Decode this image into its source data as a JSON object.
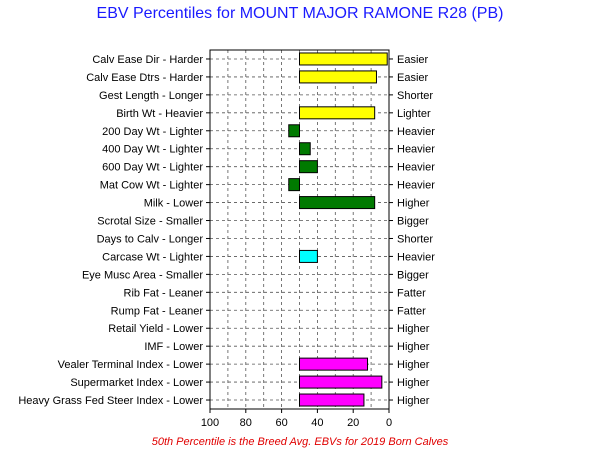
{
  "title": "EBV Percentiles for MOUNT MAJOR RAMONE R28 (PB)",
  "footnote": "50th Percentile is the Breed Avg. EBVs for 2019 Born Calves",
  "colors": {
    "yellow": "#ffff00",
    "green": "#007a00",
    "cyan": "#00ffff",
    "magenta": "#ff00ff",
    "title": "#1a1aff",
    "footnote": "#e00000"
  },
  "chart_data": {
    "type": "bar",
    "orientation": "horizontal",
    "baseline": 50,
    "xlim": [
      100,
      0
    ],
    "xticks": [
      "100",
      "80",
      "60",
      "40",
      "20",
      "0"
    ],
    "xtick_values": [
      100,
      80,
      60,
      40,
      20,
      0
    ],
    "grid": true,
    "rows": [
      {
        "left": "Calv Ease Dir - Harder",
        "right": "Easier",
        "value": 1,
        "color": "yellow"
      },
      {
        "left": "Calv Ease Dtrs - Harder",
        "right": "Easier",
        "value": 7,
        "color": "yellow"
      },
      {
        "left": "Gest Length - Longer",
        "right": "Shorter",
        "value": null,
        "color": null
      },
      {
        "left": "Birth Wt - Heavier",
        "right": "Lighter",
        "value": 8,
        "color": "yellow"
      },
      {
        "left": "200 Day Wt - Lighter",
        "right": "Heavier",
        "value": 56,
        "color": "green"
      },
      {
        "left": "400 Day Wt - Lighter",
        "right": "Heavier",
        "value": 44,
        "color": "green"
      },
      {
        "left": "600 Day Wt - Lighter",
        "right": "Heavier",
        "value": 40,
        "color": "green"
      },
      {
        "left": "Mat Cow Wt - Lighter",
        "right": "Heavier",
        "value": 56,
        "color": "green"
      },
      {
        "left": "Milk - Lower",
        "right": "Higher",
        "value": 8,
        "color": "green"
      },
      {
        "left": "Scrotal Size - Smaller",
        "right": "Bigger",
        "value": null,
        "color": null
      },
      {
        "left": "Days to Calv - Longer",
        "right": "Shorter",
        "value": null,
        "color": null
      },
      {
        "left": "Carcase Wt - Lighter",
        "right": "Heavier",
        "value": 40,
        "color": "cyan"
      },
      {
        "left": "Eye Musc Area - Smaller",
        "right": "Bigger",
        "value": null,
        "color": null
      },
      {
        "left": "Rib Fat - Leaner",
        "right": "Fatter",
        "value": null,
        "color": null
      },
      {
        "left": "Rump Fat - Leaner",
        "right": "Fatter",
        "value": null,
        "color": null
      },
      {
        "left": "Retail Yield - Lower",
        "right": "Higher",
        "value": null,
        "color": null
      },
      {
        "left": "IMF - Lower",
        "right": "Higher",
        "value": null,
        "color": null
      },
      {
        "left": "Vealer Terminal Index - Lower",
        "right": "Higher",
        "value": 12,
        "color": "magenta"
      },
      {
        "left": "Supermarket Index - Lower",
        "right": "Higher",
        "value": 4,
        "color": "magenta"
      },
      {
        "left": "Heavy Grass Fed Steer Index - Lower",
        "right": "Higher",
        "value": 14,
        "color": "magenta"
      }
    ]
  }
}
